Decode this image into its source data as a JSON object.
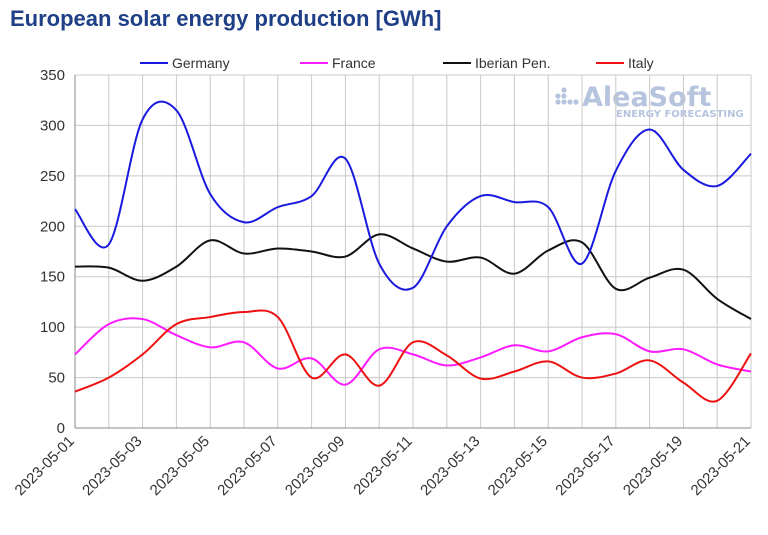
{
  "title": "European solar energy production [GWh]",
  "watermark": {
    "main": "AleaSoft",
    "sub": "ENERGY FORECASTING",
    "color": "#b6c4de"
  },
  "chart_data": {
    "type": "line",
    "title": "European solar energy production [GWh]",
    "xlabel": "",
    "ylabel": "",
    "ylim": [
      0,
      350
    ],
    "yticks": [
      0,
      50,
      100,
      150,
      200,
      250,
      300,
      350
    ],
    "x": [
      "2023-05-01",
      "2023-05-02",
      "2023-05-03",
      "2023-05-04",
      "2023-05-05",
      "2023-05-06",
      "2023-05-07",
      "2023-05-08",
      "2023-05-09",
      "2023-05-10",
      "2023-05-11",
      "2023-05-12",
      "2023-05-13",
      "2023-05-14",
      "2023-05-15",
      "2023-05-16",
      "2023-05-17",
      "2023-05-18",
      "2023-05-19",
      "2023-05-20",
      "2023-05-21"
    ],
    "xtick_labels": [
      "2023-05-01",
      "2023-05-03",
      "2023-05-05",
      "2023-05-07",
      "2023-05-09",
      "2023-05-11",
      "2023-05-13",
      "2023-05-15",
      "2023-05-17",
      "2023-05-19",
      "2023-05-21"
    ],
    "grid": true,
    "legend_position": "top",
    "series": [
      {
        "name": "Germany",
        "color": "#1a1adf",
        "values": [
          217,
          182,
          306,
          315,
          232,
          204,
          219,
          230,
          267,
          163,
          139,
          200,
          230,
          224,
          219,
          163,
          255,
          296,
          256,
          240,
          272
        ]
      },
      {
        "name": "France",
        "color": "#ff1aff",
        "values": [
          73,
          103,
          108,
          92,
          80,
          85,
          59,
          69,
          43,
          78,
          73,
          62,
          70,
          82,
          76,
          90,
          93,
          76,
          78,
          63,
          56
        ]
      },
      {
        "name": "Iberian Pen.",
        "color": "#111111",
        "values": [
          160,
          159,
          146,
          160,
          186,
          173,
          178,
          175,
          170,
          192,
          178,
          165,
          169,
          153,
          176,
          184,
          138,
          149,
          157,
          128,
          108
        ]
      },
      {
        "name": "Italy",
        "color": "#ee1111",
        "values": [
          36,
          50,
          73,
          103,
          110,
          115,
          110,
          50,
          73,
          42,
          85,
          72,
          49,
          56,
          66,
          50,
          54,
          67,
          45,
          27,
          74
        ]
      }
    ]
  }
}
